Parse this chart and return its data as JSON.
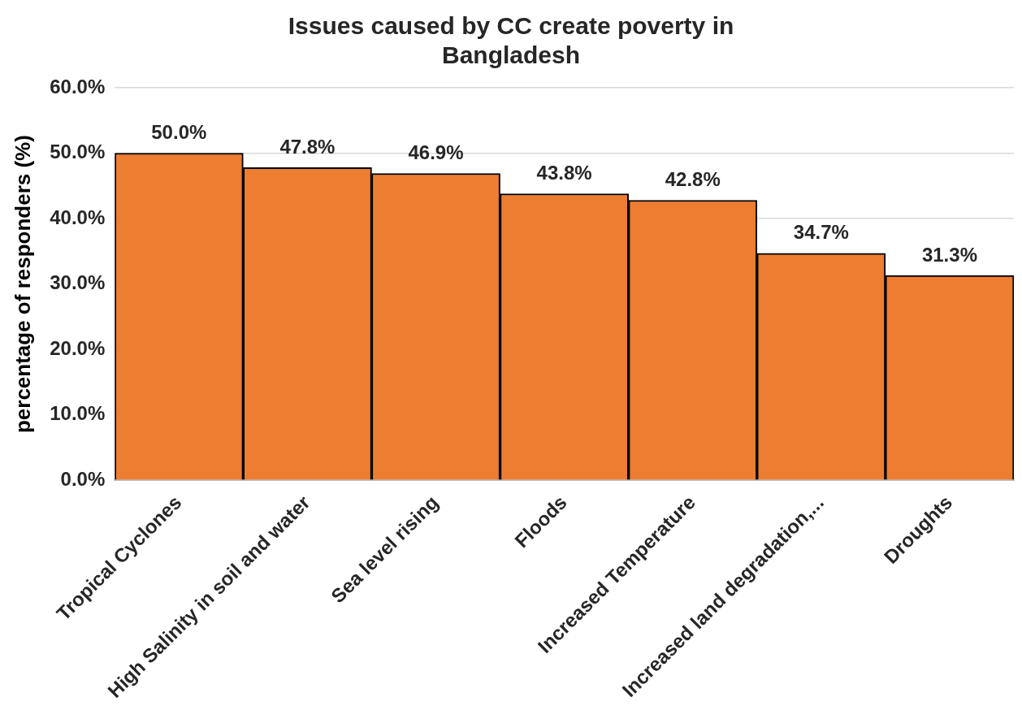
{
  "chart_data": {
    "type": "bar",
    "title": "Issues caused by CC create poverty in Bangladesh",
    "ylabel": "percentage of responders (%)",
    "categories": [
      "Tropical Cyclones",
      "High Salinity in soil and water",
      "Sea level rising",
      "Floods",
      "Increased Temperature",
      "Increased land degradation,...",
      "Droughts"
    ],
    "values": [
      50.0,
      47.8,
      46.9,
      43.8,
      42.8,
      34.7,
      31.3
    ],
    "value_labels": [
      "50.0%",
      "47.8%",
      "46.9%",
      "43.8%",
      "42.8%",
      "34.7%",
      "31.3%"
    ],
    "color": "#ed7d31",
    "ylim": [
      0,
      60
    ],
    "yticks": [
      {
        "value": 0,
        "label": "0.0%"
      },
      {
        "value": 10,
        "label": "10.0%"
      },
      {
        "value": 20,
        "label": "20.0%"
      },
      {
        "value": 30,
        "label": "30.0%"
      },
      {
        "value": 40,
        "label": "40.0%"
      },
      {
        "value": 50,
        "label": "50.0%"
      },
      {
        "value": 60,
        "label": "60.0%"
      }
    ],
    "grid": "y",
    "legend": false
  }
}
